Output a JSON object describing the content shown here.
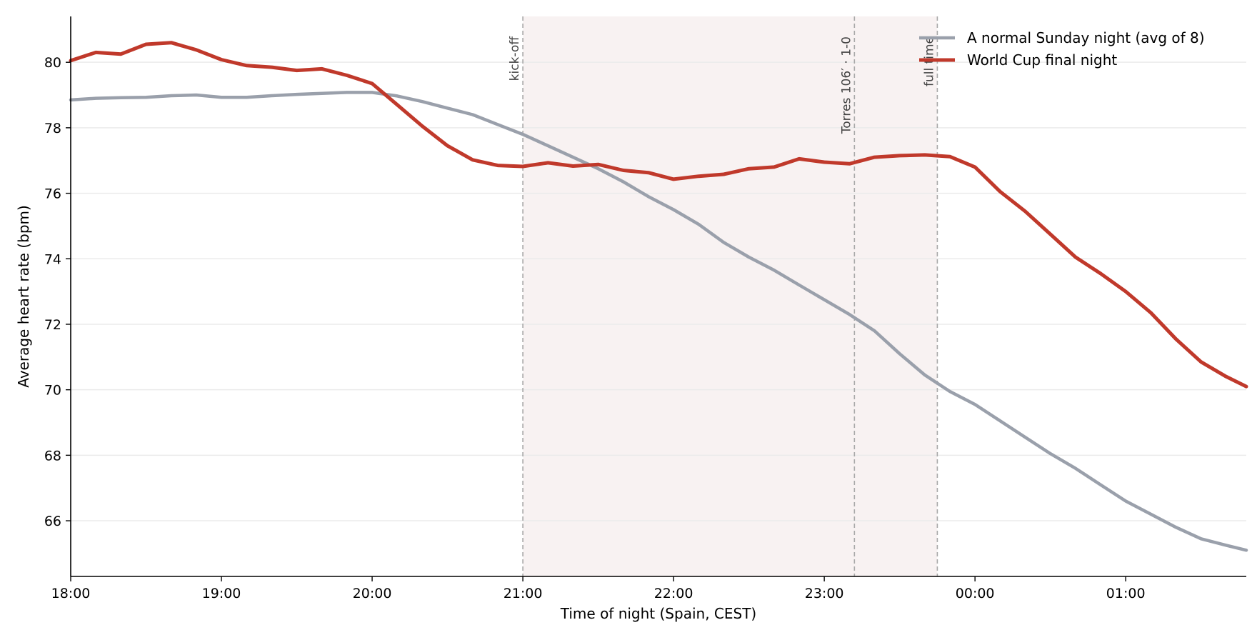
{
  "chart_data": {
    "type": "line",
    "xlabel": "Time of night (Spain, CEST)",
    "ylabel": "Average heart rate (bpm)",
    "x_unit": "hours",
    "xlim": [
      18.0,
      25.8
    ],
    "ylim": [
      64.3,
      81.4
    ],
    "x_ticks": [
      {
        "value": 18,
        "label": "18:00"
      },
      {
        "value": 19,
        "label": "19:00"
      },
      {
        "value": 20,
        "label": "20:00"
      },
      {
        "value": 21,
        "label": "21:00"
      },
      {
        "value": 22,
        "label": "22:00"
      },
      {
        "value": 23,
        "label": "23:00"
      },
      {
        "value": 24,
        "label": "00:00"
      },
      {
        "value": 25,
        "label": "01:00"
      }
    ],
    "y_ticks": [
      66,
      68,
      70,
      72,
      74,
      76,
      78,
      80
    ],
    "grid": "horizontal",
    "legend_position": "top-right",
    "shaded_region": {
      "start": 21.0,
      "end": 23.75,
      "color": "#f8f2f2"
    },
    "annotations": [
      {
        "x": 21.0,
        "label": "kick-off"
      },
      {
        "x": 23.2,
        "label": "Torres 106′ · 1-0"
      },
      {
        "x": 23.75,
        "label": "full time"
      }
    ],
    "series": [
      {
        "name": "A normal Sunday night (avg of 8)",
        "color": "#9aa0ab",
        "x": [
          18.0,
          18.167,
          18.333,
          18.5,
          18.667,
          18.833,
          19.0,
          19.167,
          19.333,
          19.5,
          19.667,
          19.833,
          20.0,
          20.167,
          20.333,
          20.5,
          20.667,
          20.833,
          21.0,
          21.167,
          21.333,
          21.5,
          21.667,
          21.833,
          22.0,
          22.167,
          22.333,
          22.5,
          22.667,
          22.833,
          23.0,
          23.167,
          23.333,
          23.5,
          23.667,
          23.833,
          24.0,
          24.167,
          24.333,
          24.5,
          24.667,
          24.833,
          25.0,
          25.167,
          25.333,
          25.5,
          25.667,
          25.8
        ],
        "y": [
          78.85,
          78.9,
          78.92,
          78.93,
          78.98,
          79.0,
          78.93,
          78.93,
          78.98,
          79.02,
          79.05,
          79.08,
          79.08,
          78.97,
          78.8,
          78.6,
          78.4,
          78.1,
          77.8,
          77.45,
          77.1,
          76.75,
          76.35,
          75.9,
          75.5,
          75.05,
          74.5,
          74.05,
          73.65,
          73.2,
          72.75,
          72.3,
          71.8,
          71.1,
          70.45,
          69.95,
          69.55,
          69.05,
          68.55,
          68.05,
          67.6,
          67.1,
          66.6,
          66.2,
          65.8,
          65.45,
          65.25,
          65.1
        ]
      },
      {
        "name": "World Cup final night",
        "color": "#c0392b",
        "x": [
          18.0,
          18.167,
          18.333,
          18.5,
          18.667,
          18.833,
          19.0,
          19.167,
          19.333,
          19.5,
          19.667,
          19.833,
          20.0,
          20.167,
          20.333,
          20.5,
          20.667,
          20.833,
          21.0,
          21.167,
          21.333,
          21.5,
          21.667,
          21.833,
          22.0,
          22.167,
          22.333,
          22.5,
          22.667,
          22.833,
          23.0,
          23.167,
          23.333,
          23.5,
          23.667,
          23.833,
          24.0,
          24.167,
          24.333,
          24.5,
          24.667,
          24.833,
          25.0,
          25.167,
          25.333,
          25.5,
          25.667,
          25.8
        ],
        "y": [
          80.05,
          80.3,
          80.25,
          80.55,
          80.6,
          80.38,
          80.08,
          79.9,
          79.85,
          79.75,
          79.8,
          79.6,
          79.35,
          78.7,
          78.05,
          77.45,
          77.02,
          76.85,
          76.82,
          76.93,
          76.83,
          76.88,
          76.7,
          76.63,
          76.43,
          76.52,
          76.58,
          76.75,
          76.8,
          77.05,
          76.95,
          76.9,
          77.1,
          77.15,
          77.17,
          77.12,
          76.8,
          76.05,
          75.45,
          74.75,
          74.05,
          73.55,
          73.0,
          72.35,
          71.55,
          70.85,
          70.4,
          70.1
        ]
      }
    ]
  }
}
